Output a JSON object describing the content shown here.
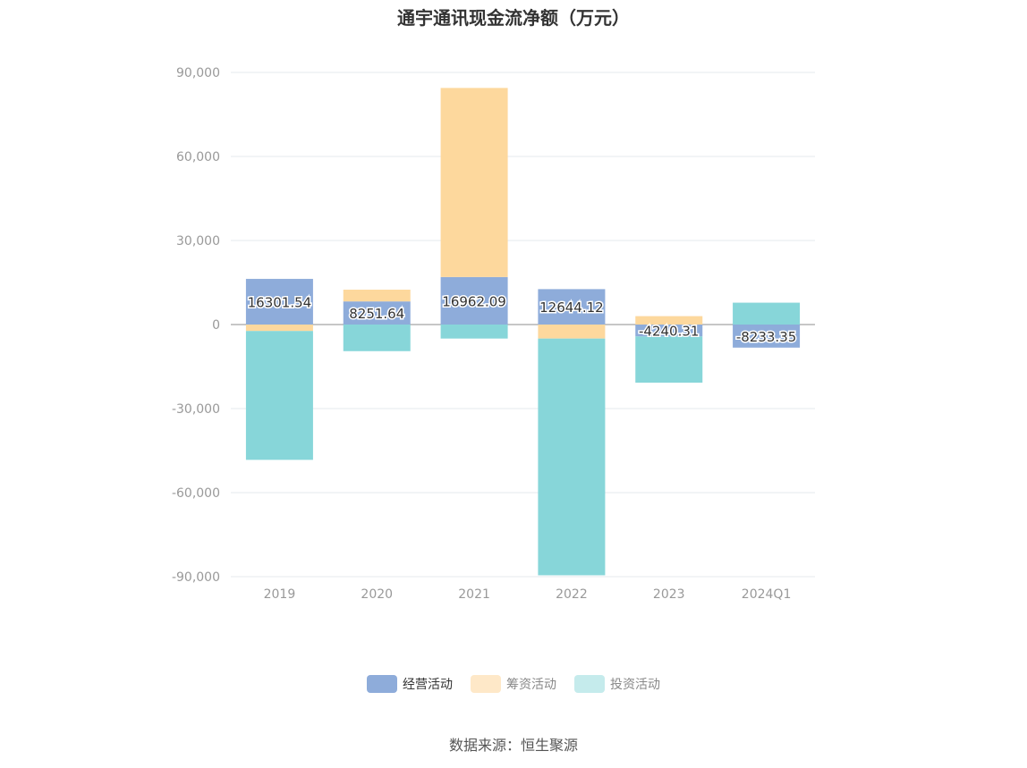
{
  "title": "通宇通讯现金流净额（万元）",
  "source": "数据来源：恒生聚源",
  "chart_data": {
    "type": "bar",
    "stacked": true,
    "categories": [
      "2019",
      "2020",
      "2021",
      "2022",
      "2023",
      "2024Q1"
    ],
    "ylim": [
      -90000,
      90000
    ],
    "yticks": [
      90000,
      60000,
      30000,
      0,
      -30000,
      -60000,
      -90000
    ],
    "ytick_labels": [
      "90,000",
      "60,000",
      "30,000",
      "0",
      "-30,000",
      "-60,000",
      "-90,000"
    ],
    "grid": true,
    "legend_position": "bottom",
    "series": [
      {
        "name": "经营活动",
        "color": "#8eacda",
        "values": [
          16301.54,
          8251.64,
          16962.09,
          12644.12,
          -4240.31,
          -8233.35
        ],
        "labels": [
          "16301.54",
          "8251.64",
          "16962.09",
          "12644.12",
          "-4240.31",
          "-8233.35"
        ]
      },
      {
        "name": "筹资活动",
        "color": "#fdd89d",
        "values": [
          -2300,
          4200,
          67500,
          -5000,
          3000,
          0
        ]
      },
      {
        "name": "投资活动",
        "color": "#87d6d9",
        "values": [
          -46000,
          -9500,
          -5000,
          -84500,
          -16500,
          7800
        ]
      }
    ]
  },
  "legend": [
    {
      "label": "经营活动",
      "color": "#8eacda"
    },
    {
      "label": "筹资活动",
      "color": "#fee8c8"
    },
    {
      "label": "投资活动",
      "color": "#c5ebec"
    }
  ]
}
